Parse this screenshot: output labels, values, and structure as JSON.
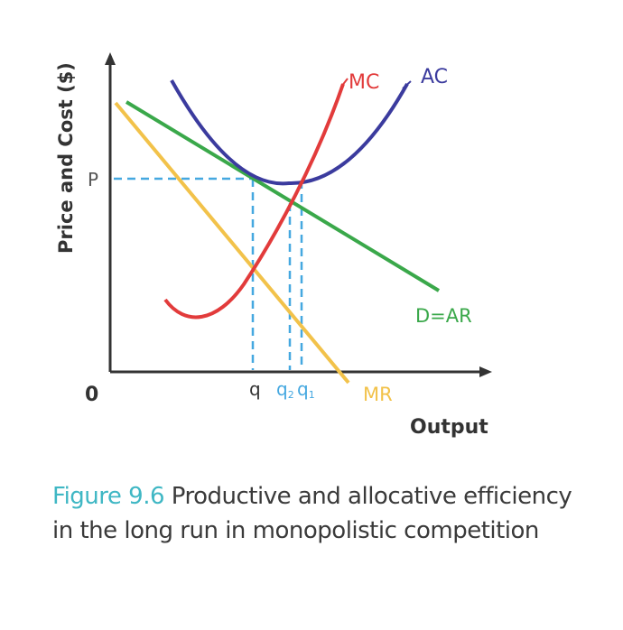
{
  "diagram": {
    "y_axis_label": "Price and Cost ($)",
    "x_axis_label": "Output",
    "origin_label": "0",
    "price_label": "P",
    "quantity_labels": {
      "q": "q",
      "q1": "q1",
      "q2": "q2"
    },
    "curve_labels": {
      "mc": "MC",
      "ac": "AC",
      "demand": "D=AR",
      "mr": "MR"
    },
    "colors": {
      "mc": "#e23b3b",
      "ac": "#3b3b9e",
      "demand": "#3aa84a",
      "mr": "#f2c24a",
      "guides": "#45a8e0",
      "axes": "#333333",
      "caption_accent": "#3fb7c4"
    }
  },
  "caption": {
    "figure_number": "Figure 9.6",
    "text": "Productive and allocative efficiency in the long run in monopolistic competition"
  }
}
